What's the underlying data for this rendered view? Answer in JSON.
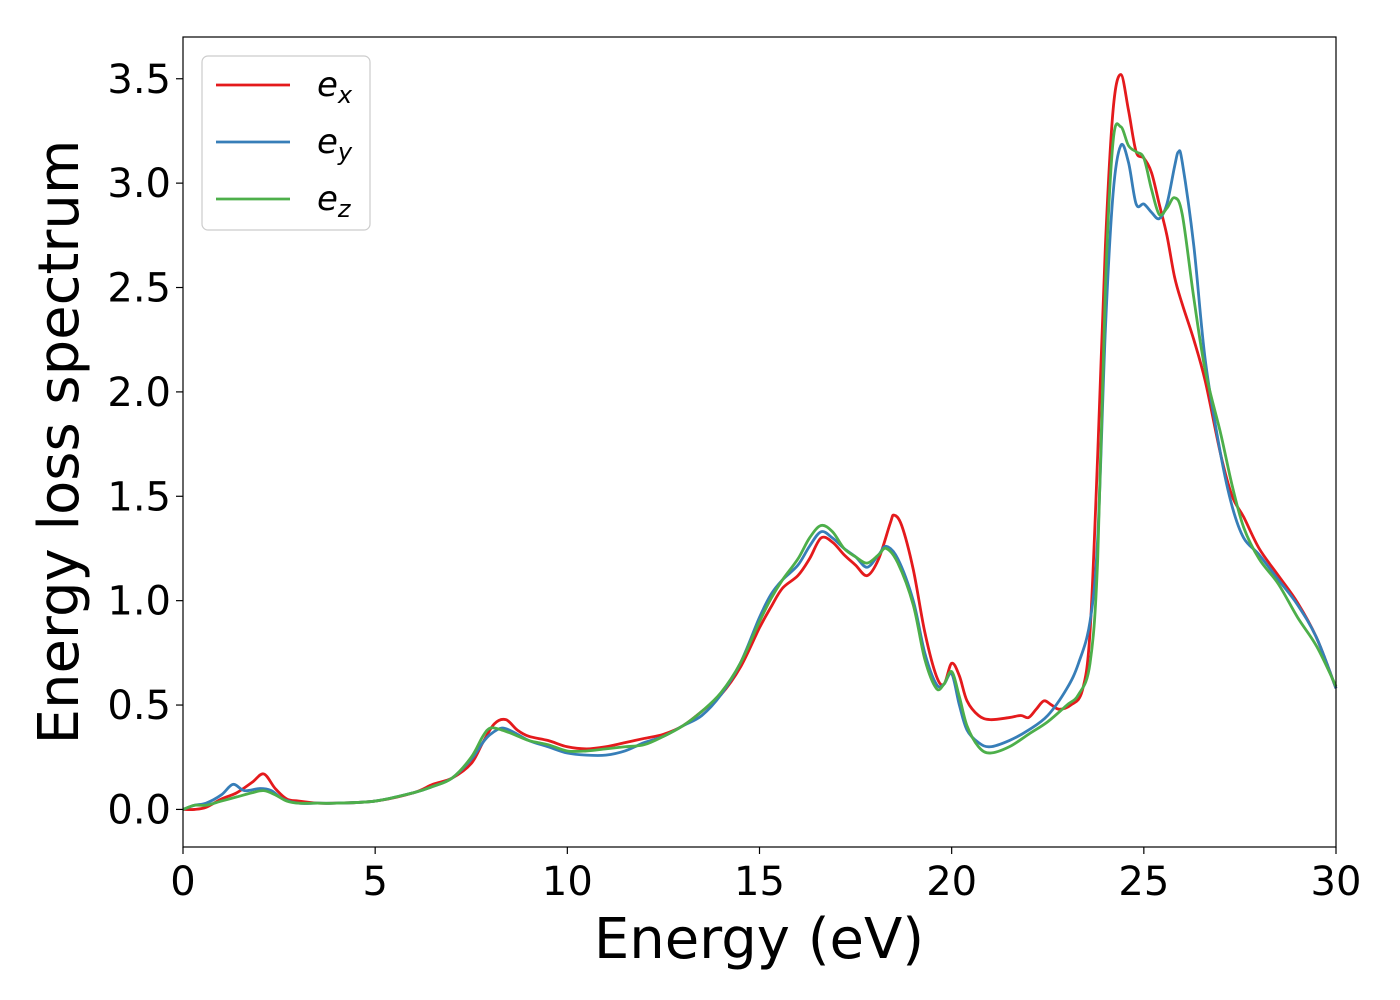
{
  "chart_data": {
    "type": "line",
    "title": "",
    "xlabel": "Energy (eV)",
    "ylabel": "Energy loss spectrum",
    "xlim": [
      0,
      30
    ],
    "ylim": [
      -0.18,
      3.7
    ],
    "xticks": [
      0,
      5,
      10,
      15,
      20,
      25,
      30
    ],
    "xtick_labels": [
      "0",
      "5",
      "10",
      "15",
      "20",
      "25",
      "30"
    ],
    "yticks": [
      0.0,
      0.5,
      1.0,
      1.5,
      2.0,
      2.5,
      3.0,
      3.5
    ],
    "ytick_labels": [
      "0.0",
      "0.5",
      "1.0",
      "1.5",
      "2.0",
      "2.5",
      "3.0",
      "3.5"
    ],
    "grid": false,
    "legend_position": "top-left",
    "series": [
      {
        "name": "e",
        "subscript": "x",
        "color": "#e41a1c",
        "x": [
          0,
          0.3,
          0.6,
          1.0,
          1.4,
          1.8,
          2.1,
          2.4,
          2.7,
          3.0,
          3.5,
          4.0,
          5.0,
          6.0,
          6.5,
          7.0,
          7.5,
          7.8,
          8.1,
          8.4,
          8.7,
          9.0,
          9.5,
          10.0,
          10.5,
          11.0,
          11.5,
          12.0,
          12.5,
          13.0,
          13.5,
          14.0,
          14.5,
          15.0,
          15.3,
          15.6,
          16.0,
          16.3,
          16.6,
          16.9,
          17.2,
          17.5,
          17.8,
          18.1,
          18.4,
          18.5,
          18.7,
          19.0,
          19.3,
          19.6,
          19.8,
          20.0,
          20.2,
          20.4,
          20.7,
          21.0,
          21.5,
          21.8,
          22.0,
          22.2,
          22.4,
          22.6,
          22.8,
          23.1,
          23.4,
          23.6,
          23.8,
          24.0,
          24.2,
          24.4,
          24.6,
          24.8,
          25.0,
          25.2,
          25.4,
          25.6,
          25.8,
          26.0,
          26.3,
          26.6,
          27.0,
          27.3,
          27.6,
          28.0,
          28.5,
          29.0,
          29.5,
          30.0
        ],
        "y": [
          0.0,
          0.0,
          0.01,
          0.05,
          0.08,
          0.13,
          0.17,
          0.1,
          0.05,
          0.04,
          0.03,
          0.03,
          0.04,
          0.08,
          0.12,
          0.15,
          0.22,
          0.32,
          0.41,
          0.43,
          0.38,
          0.35,
          0.33,
          0.3,
          0.29,
          0.3,
          0.32,
          0.34,
          0.36,
          0.4,
          0.47,
          0.55,
          0.68,
          0.87,
          0.97,
          1.06,
          1.12,
          1.2,
          1.3,
          1.28,
          1.22,
          1.17,
          1.12,
          1.2,
          1.37,
          1.41,
          1.36,
          1.15,
          0.85,
          0.64,
          0.6,
          0.7,
          0.64,
          0.52,
          0.45,
          0.43,
          0.44,
          0.45,
          0.44,
          0.48,
          0.52,
          0.5,
          0.48,
          0.5,
          0.57,
          0.85,
          1.7,
          2.7,
          3.35,
          3.52,
          3.35,
          3.15,
          3.12,
          3.05,
          2.9,
          2.75,
          2.55,
          2.42,
          2.25,
          2.05,
          1.7,
          1.5,
          1.4,
          1.25,
          1.12,
          0.99,
          0.82,
          0.58
        ]
      },
      {
        "name": "e",
        "subscript": "y",
        "color": "#377eb8",
        "x": [
          0,
          0.3,
          0.6,
          1.0,
          1.3,
          1.6,
          2.0,
          2.3,
          2.6,
          3.0,
          3.5,
          4.0,
          5.0,
          6.0,
          6.5,
          7.0,
          7.5,
          7.8,
          8.0,
          8.3,
          8.6,
          9.0,
          9.5,
          10.0,
          10.5,
          11.0,
          11.5,
          12.0,
          12.5,
          13.0,
          13.5,
          14.0,
          14.5,
          15.0,
          15.3,
          15.6,
          16.0,
          16.3,
          16.6,
          16.9,
          17.2,
          17.5,
          17.8,
          18.1,
          18.3,
          18.6,
          19.0,
          19.3,
          19.6,
          19.8,
          20.0,
          20.2,
          20.4,
          20.7,
          21.0,
          21.5,
          22.0,
          22.5,
          23.0,
          23.3,
          23.6,
          23.8,
          24.0,
          24.2,
          24.4,
          24.6,
          24.8,
          25.0,
          25.2,
          25.4,
          25.6,
          25.8,
          25.9,
          26.0,
          26.3,
          26.6,
          27.0,
          27.3,
          27.6,
          28.0,
          28.5,
          29.0,
          29.5,
          30.0
        ],
        "y": [
          0.0,
          0.02,
          0.03,
          0.07,
          0.12,
          0.09,
          0.1,
          0.09,
          0.05,
          0.03,
          0.03,
          0.03,
          0.04,
          0.08,
          0.11,
          0.15,
          0.24,
          0.32,
          0.36,
          0.39,
          0.37,
          0.33,
          0.3,
          0.27,
          0.26,
          0.26,
          0.28,
          0.32,
          0.35,
          0.4,
          0.45,
          0.55,
          0.7,
          0.92,
          1.03,
          1.1,
          1.17,
          1.26,
          1.33,
          1.3,
          1.25,
          1.21,
          1.16,
          1.22,
          1.26,
          1.2,
          1.0,
          0.75,
          0.6,
          0.6,
          0.65,
          0.5,
          0.38,
          0.32,
          0.3,
          0.33,
          0.38,
          0.45,
          0.58,
          0.7,
          0.9,
          1.3,
          2.3,
          2.95,
          3.18,
          3.1,
          2.9,
          2.9,
          2.86,
          2.83,
          2.9,
          3.08,
          3.15,
          3.1,
          2.7,
          2.15,
          1.7,
          1.45,
          1.3,
          1.22,
          1.1,
          0.98,
          0.82,
          0.58
        ]
      },
      {
        "name": "e",
        "subscript": "z",
        "color": "#4daf4a",
        "x": [
          0,
          0.3,
          0.6,
          1.0,
          1.4,
          1.8,
          2.1,
          2.4,
          2.7,
          3.0,
          3.5,
          4.0,
          5.0,
          6.0,
          6.5,
          7.0,
          7.5,
          7.8,
          8.0,
          8.3,
          8.6,
          9.0,
          9.5,
          10.0,
          10.5,
          11.0,
          11.5,
          12.0,
          12.5,
          13.0,
          13.5,
          14.0,
          14.5,
          15.0,
          15.3,
          15.6,
          16.0,
          16.3,
          16.6,
          16.9,
          17.2,
          17.5,
          17.8,
          18.1,
          18.3,
          18.6,
          19.0,
          19.3,
          19.6,
          19.8,
          20.0,
          20.2,
          20.4,
          20.7,
          21.0,
          21.5,
          22.0,
          22.5,
          23.0,
          23.3,
          23.6,
          23.8,
          24.0,
          24.2,
          24.4,
          24.6,
          24.8,
          25.0,
          25.2,
          25.4,
          25.6,
          25.8,
          26.0,
          26.3,
          26.6,
          27.0,
          27.3,
          27.6,
          28.0,
          28.5,
          29.0,
          29.5,
          30.0
        ],
        "y": [
          0.0,
          0.02,
          0.02,
          0.04,
          0.06,
          0.08,
          0.09,
          0.07,
          0.04,
          0.03,
          0.03,
          0.03,
          0.04,
          0.08,
          0.11,
          0.15,
          0.25,
          0.35,
          0.39,
          0.38,
          0.36,
          0.33,
          0.31,
          0.28,
          0.28,
          0.29,
          0.3,
          0.31,
          0.35,
          0.4,
          0.47,
          0.56,
          0.7,
          0.9,
          1.01,
          1.1,
          1.2,
          1.3,
          1.36,
          1.33,
          1.25,
          1.21,
          1.18,
          1.22,
          1.25,
          1.18,
          0.98,
          0.72,
          0.58,
          0.6,
          0.66,
          0.54,
          0.4,
          0.3,
          0.27,
          0.3,
          0.36,
          0.42,
          0.5,
          0.55,
          0.7,
          1.2,
          2.5,
          3.2,
          3.27,
          3.18,
          3.15,
          3.12,
          2.97,
          2.85,
          2.88,
          2.93,
          2.85,
          2.45,
          2.1,
          1.8,
          1.55,
          1.35,
          1.2,
          1.08,
          0.92,
          0.78,
          0.59
        ]
      }
    ]
  }
}
